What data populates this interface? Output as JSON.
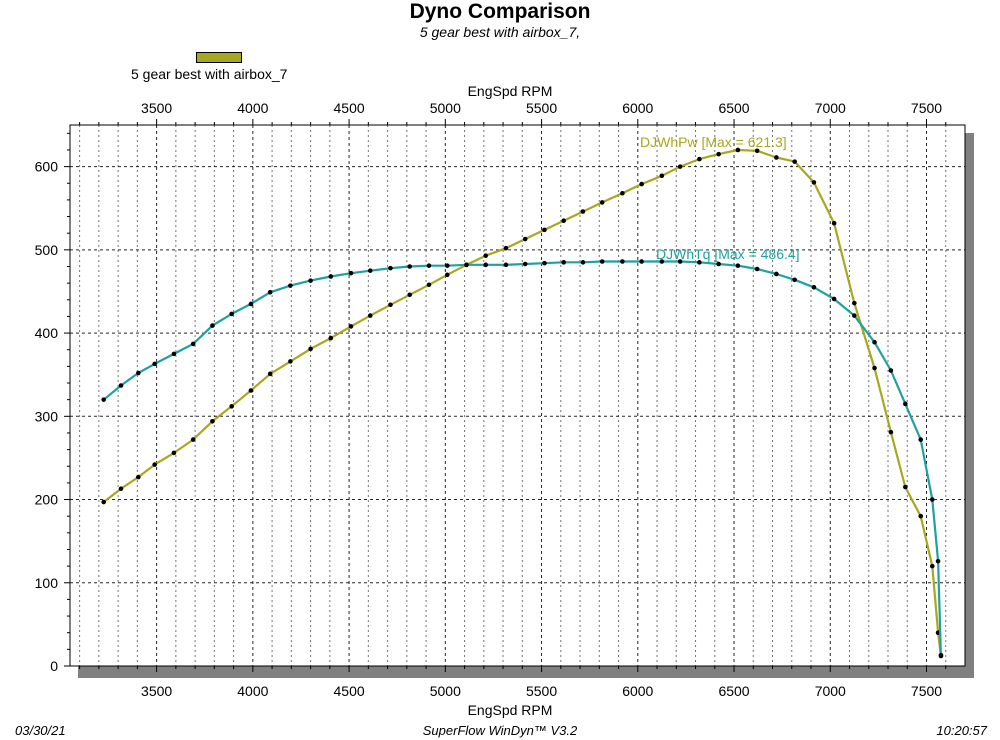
{
  "title": "Dyno Comparison",
  "subtitle": "5 gear best with airbox_7,",
  "legend": {
    "label": "5 gear best with airbox_7",
    "color": "#a8a81e"
  },
  "footer": {
    "date": "03/30/21",
    "software": "SuperFlow WinDyn™ V3.2",
    "time": "10:20:57"
  },
  "chart_data": {
    "type": "line",
    "title": "Dyno Comparison",
    "subtitle": "5 gear best with airbox_7,",
    "xlabel": "EngSpd  RPM",
    "x2label": "EngSpd  RPM",
    "ylabel": "",
    "xlim": [
      3050,
      7700
    ],
    "ylim": [
      0,
      650
    ],
    "xticks": [
      3500,
      4000,
      4500,
      5000,
      5500,
      6000,
      6500,
      7000,
      7500
    ],
    "yticks": [
      0,
      100,
      200,
      300,
      400,
      500,
      600
    ],
    "grid": true,
    "series": [
      {
        "name": "DJWhPw",
        "annotation": "DJWhPw [Max = 621.3]",
        "color": "#a8a81e",
        "x": [
          3225,
          3315,
          3405,
          3490,
          3590,
          3690,
          3790,
          3890,
          3990,
          4090,
          4195,
          4300,
          4405,
          4510,
          4610,
          4715,
          4815,
          4915,
          5010,
          5110,
          5210,
          5315,
          5415,
          5515,
          5615,
          5715,
          5815,
          5920,
          6020,
          6125,
          6220,
          6320,
          6420,
          6520,
          6620,
          6720,
          6815,
          6915,
          7020,
          7125,
          7230,
          7315,
          7390,
          7470,
          7530,
          7560,
          7575
        ],
        "y": [
          197,
          213,
          227,
          242,
          256,
          272,
          294,
          312,
          331,
          351,
          366,
          381,
          394,
          408,
          421,
          434,
          446,
          458,
          470,
          482,
          493,
          502,
          513,
          524,
          535,
          546,
          557,
          568,
          579,
          589,
          600,
          609,
          615,
          620,
          619,
          611,
          606,
          581,
          532,
          436,
          358,
          281,
          215,
          180,
          120,
          40,
          12
        ]
      },
      {
        "name": "DJWhTq",
        "annotation": "DJWhTq [Max = 486.4]",
        "color": "#1fa1a1",
        "x": [
          3225,
          3315,
          3405,
          3490,
          3590,
          3690,
          3790,
          3890,
          3990,
          4090,
          4195,
          4300,
          4405,
          4510,
          4610,
          4715,
          4815,
          4915,
          5010,
          5110,
          5210,
          5315,
          5415,
          5515,
          5615,
          5715,
          5815,
          5920,
          6020,
          6125,
          6220,
          6320,
          6420,
          6520,
          6620,
          6720,
          6815,
          6915,
          7020,
          7125,
          7230,
          7315,
          7390,
          7470,
          7530,
          7560,
          7575
        ],
        "y": [
          320,
          337,
          352,
          363,
          375,
          387,
          409,
          423,
          435,
          449,
          457,
          463,
          468,
          472,
          475,
          478,
          480,
          481,
          481,
          482,
          482,
          482,
          483,
          484,
          485,
          485,
          486,
          486,
          486,
          486,
          486,
          485,
          483,
          481,
          477,
          471,
          464,
          455,
          441,
          421,
          389,
          355,
          315,
          272,
          200,
          126,
          13
        ]
      }
    ]
  }
}
